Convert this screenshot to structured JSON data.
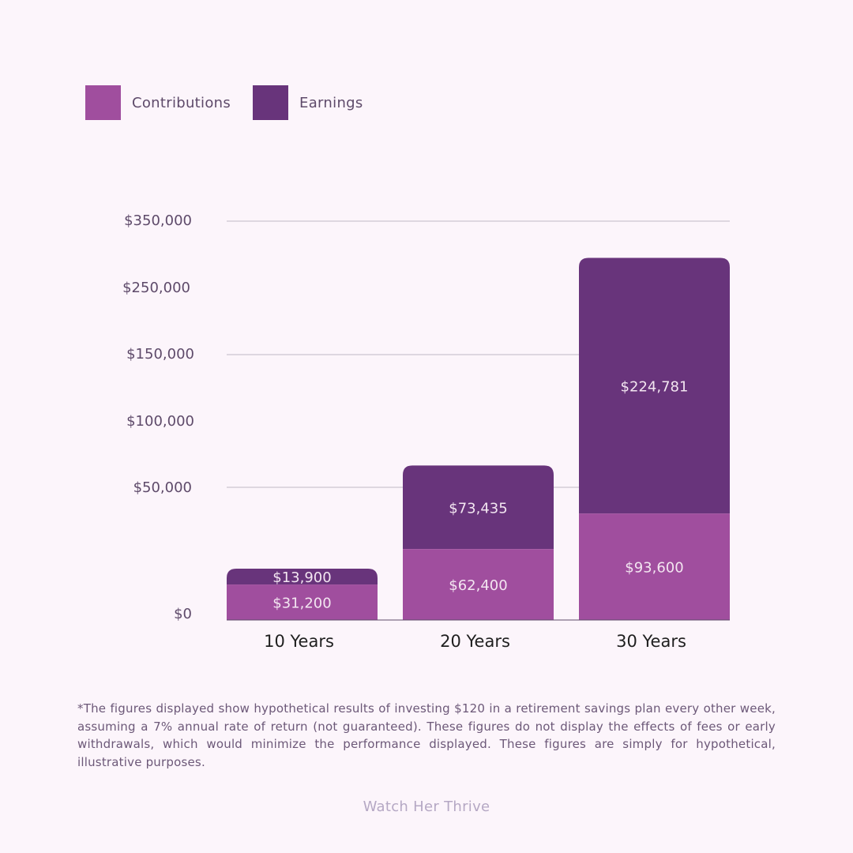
{
  "legend": [
    {
      "label": "Contributions",
      "color": "#a04e9e"
    },
    {
      "label": "Earnings",
      "color": "#68347b"
    }
  ],
  "chart_data": {
    "type": "bar",
    "stacked": true,
    "categories": [
      "10 Years",
      "20 Years",
      "30 Years"
    ],
    "series": [
      {
        "name": "Contributions",
        "color": "#a04e9e",
        "values": [
          31200,
          62400,
          93600
        ],
        "labels": [
          "$31,200",
          "$62,400",
          "$93,600"
        ]
      },
      {
        "name": "Earnings",
        "color": "#68347b",
        "values": [
          13900,
          73435,
          224781
        ],
        "labels": [
          "$13,900",
          "$73,435",
          "$224,781"
        ]
      }
    ],
    "y_ticks": [
      "$0",
      "$50,000",
      "$100,000",
      "$150,000",
      "$250,000",
      "$350,000"
    ],
    "ylim": [
      0,
      350000
    ],
    "gridlines": true,
    "legend_position": "top-left"
  },
  "footnote": "*The figures displayed show hypothetical results of investing $120 in a retirement savings plan every other week, assuming a 7% annual rate of return (not guaranteed). These figures do not display the effects of fees or early withdrawals, which would minimize the performance displayed. These figures are simply for hypothetical, illustrative purposes.",
  "brand": "Watch Her Thrive"
}
